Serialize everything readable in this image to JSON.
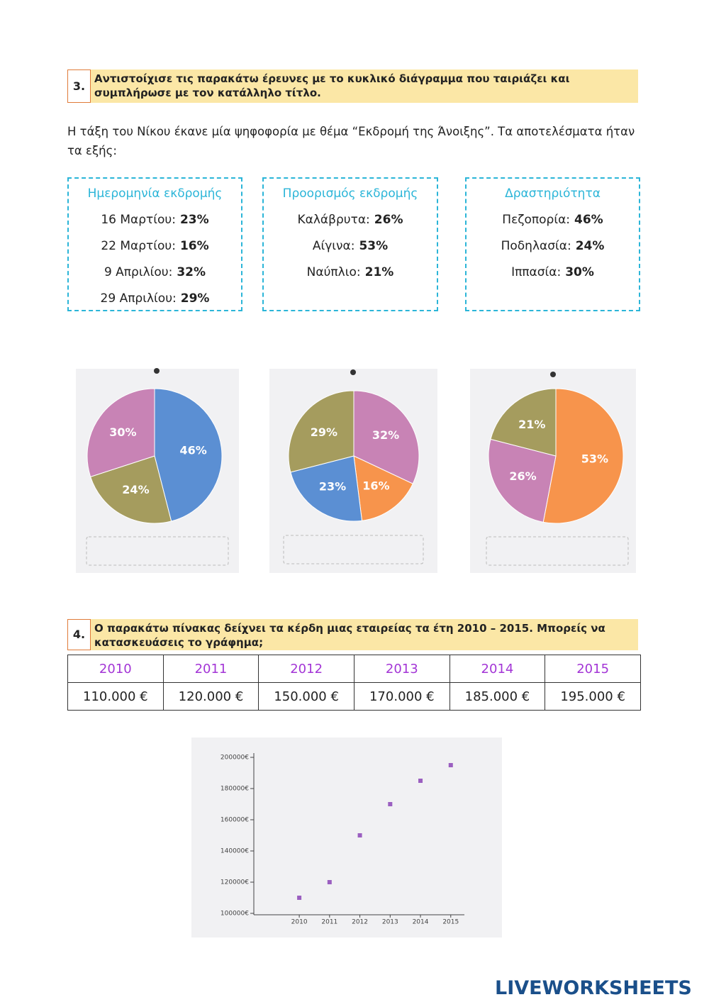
{
  "exercise3": {
    "number": "3.",
    "instruction": "Αντιστοίχισε τις παρακάτω έρευνες με το κυκλικό διάγραμμα που ταιριάζει και συμπλήρωσε με τον κατάλληλο τίτλο.",
    "intro": "Η τάξη του Νίκου έκανε μία ψηφοφορία με θέμα “Εκδρομή της Άνοιξης”. Τα αποτελέσματα ήταν τα εξής:"
  },
  "boxes": [
    {
      "title": "Ημερομηνία εκδρομής",
      "items": [
        {
          "label": "16 Μαρτίου:",
          "value": "23%"
        },
        {
          "label": "22 Μαρτίου:",
          "value": "16%"
        },
        {
          "label": "9 Απριλίου:",
          "value": "32%"
        },
        {
          "label": "29 Απριλίου:",
          "value": "29%"
        }
      ]
    },
    {
      "title": "Προορισμός εκδρομής",
      "items": [
        {
          "label": "Καλάβρυτα:",
          "value": "26%"
        },
        {
          "label": "Αίγινα:",
          "value": "53%"
        },
        {
          "label": "Ναύπλιο:",
          "value": "21%"
        }
      ]
    },
    {
      "title": "Δραστηριότητα",
      "items": [
        {
          "label": "Πεζοπορία:",
          "value": "46%"
        },
        {
          "label": "Ποδηλασία:",
          "value": "24%"
        },
        {
          "label": "Ιππασία:",
          "value": "30%"
        }
      ]
    }
  ],
  "chart_data": [
    {
      "type": "pie",
      "values": [
        46,
        24,
        30
      ],
      "value_labels": [
        "46%",
        "24%",
        "30%"
      ],
      "colors": [
        "#5b8fd3",
        "#a59c5e",
        "#c883b5"
      ]
    },
    {
      "type": "pie",
      "values": [
        32,
        16,
        23,
        29
      ],
      "value_labels": [
        "32%",
        "16%",
        "23%",
        "29%"
      ],
      "colors": [
        "#c883b5",
        "#f7944c",
        "#5b8fd3",
        "#a59c5e"
      ]
    },
    {
      "type": "pie",
      "values": [
        53,
        26,
        21
      ],
      "value_labels": [
        "53%",
        "26%",
        "21%"
      ],
      "colors": [
        "#f7944c",
        "#c883b5",
        "#a59c5e"
      ]
    },
    {
      "type": "scatter",
      "x": [
        2010,
        2011,
        2012,
        2013,
        2014,
        2015
      ],
      "values": [
        110000,
        120000,
        150000,
        170000,
        185000,
        195000
      ],
      "color": "#9b5fc0",
      "xlim": [
        2008.5,
        2015.45
      ],
      "xticks": [
        2010,
        2011,
        2012,
        2013,
        2014,
        2015
      ],
      "ylim": [
        100000,
        200000
      ],
      "yticks": [
        {
          "value": 100000,
          "label": "100000€"
        },
        {
          "value": 120000,
          "label": "120000€"
        },
        {
          "value": 140000,
          "label": "140000€"
        },
        {
          "value": 160000,
          "label": "160000€"
        },
        {
          "value": 180000,
          "label": "180000€"
        },
        {
          "value": 200000,
          "label": "200000€"
        }
      ]
    }
  ],
  "exercise4": {
    "number": "4.",
    "instruction": "Ο παρακάτω πίνακας δείχνει τα κέρδη μιας εταιρείας τα έτη 2010 – 2015. Μπορείς να κατασκευάσεις το γράφημα;"
  },
  "table": {
    "header": [
      "2010",
      "2011",
      "2012",
      "2013",
      "2014",
      "2015"
    ],
    "rows": [
      [
        "110.000 €",
        "120.000 €",
        "150.000 €",
        "170.000 €",
        "185.000 €",
        "195.000 €"
      ]
    ]
  },
  "footer": {
    "logo": "LIVEWORKSHEETS"
  }
}
